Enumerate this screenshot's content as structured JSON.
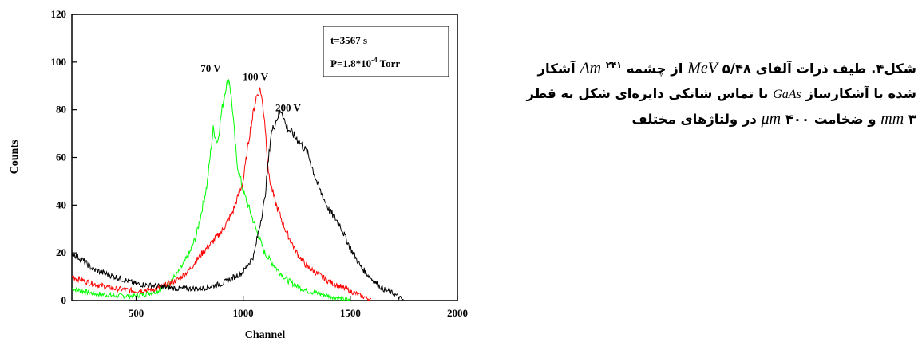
{
  "chart_data": {
    "type": "line",
    "xlabel": "Channel",
    "ylabel": "Counts",
    "xlim": [
      200,
      2000
    ],
    "ylim": [
      0,
      120
    ],
    "xticks": [
      500,
      1000,
      1500,
      2000
    ],
    "yticks": [
      0,
      20,
      40,
      60,
      80,
      100,
      120
    ],
    "grid": false,
    "annotation_box": {
      "line1": "t=3567 s",
      "line2_prefix": "P=1.8*10",
      "line2_exponent": "-4",
      "line2_suffix": " Torr"
    },
    "series": [
      {
        "name": "70 V",
        "color": "#00ff00",
        "x": [
          200,
          300,
          400,
          500,
          550,
          600,
          650,
          700,
          750,
          780,
          800,
          830,
          860,
          880,
          900,
          920,
          935,
          950,
          970,
          1000,
          1030,
          1060,
          1100,
          1150,
          1200,
          1250,
          1300,
          1350,
          1400,
          1450,
          1500
        ],
        "y": [
          5,
          3,
          2,
          2,
          3,
          4,
          7,
          12,
          20,
          27,
          35,
          48,
          72,
          66,
          80,
          90,
          93,
          80,
          58,
          46,
          38,
          30,
          20,
          14,
          9,
          6,
          4,
          3,
          2,
          1,
          0
        ]
      },
      {
        "name": "100 V",
        "color": "#ff0000",
        "x": [
          200,
          300,
          400,
          500,
          600,
          700,
          750,
          800,
          850,
          900,
          950,
          1000,
          1030,
          1060,
          1080,
          1100,
          1120,
          1150,
          1200,
          1250,
          1300,
          1350,
          1400,
          1450,
          1500,
          1550,
          1580,
          1600
        ],
        "y": [
          10,
          7,
          5,
          4,
          5,
          9,
          13,
          19,
          24,
          29,
          37,
          50,
          70,
          85,
          89,
          76,
          52,
          41,
          29,
          20,
          14,
          11,
          8,
          6,
          4,
          2,
          1,
          0
        ]
      },
      {
        "name": "200 V",
        "color": "#000000",
        "x": [
          200,
          250,
          300,
          400,
          500,
          600,
          700,
          800,
          900,
          1000,
          1050,
          1100,
          1130,
          1160,
          1180,
          1200,
          1250,
          1300,
          1350,
          1400,
          1450,
          1500,
          1550,
          1600,
          1650,
          1700,
          1750
        ],
        "y": [
          20,
          17,
          13,
          10,
          7,
          6,
          5,
          5,
          7,
          12,
          19,
          42,
          70,
          77,
          80,
          73,
          68,
          62,
          48,
          38,
          32,
          22,
          14,
          9,
          5,
          3,
          0
        ]
      }
    ]
  },
  "caption": {
    "line1": {
      "label": "شکل۴. طیف ذرات آلفای ",
      "energy": "۵/۴۸",
      "energy_unit": "MeV",
      "from_source": " از چشمه ",
      "isotope_mass": "۲۴۱",
      "isotope": "Am",
      "end": " آشکار"
    },
    "line2": {
      "start": "شده با آشکارساز ",
      "material": "GaAs",
      "end": "با تماس شاتکی دایره‌ای شکل به قطر"
    },
    "line3": {
      "diameter": "۳",
      "diameter_unit": "mm",
      "thickness_text": " و ضخامت ",
      "thickness_unit": "μm",
      "thickness": "۴۰۰",
      "end": " در ولتاژهای مختلف"
    }
  },
  "colors": {
    "axis": "#000000",
    "background": "#ffffff"
  }
}
